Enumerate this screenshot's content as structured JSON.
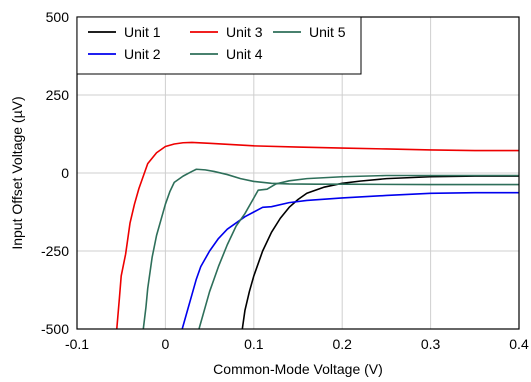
{
  "chart_data": {
    "type": "line",
    "title": "",
    "xlabel": "Common-Mode Voltage (V)",
    "ylabel": "Input Offset Voltage (µV)",
    "xlim": [
      -0.1,
      0.4
    ],
    "ylim": [
      -500,
      500
    ],
    "x_ticks": [
      -0.1,
      0,
      0.1,
      0.2,
      0.3,
      0.4
    ],
    "x_tick_labels": [
      "-0.1",
      "0",
      "0.1",
      "0.2",
      "0.3",
      "0.4"
    ],
    "y_ticks": [
      -500,
      -250,
      0,
      250,
      500
    ],
    "y_tick_labels": [
      "-500",
      "-250",
      "0",
      "250",
      "500"
    ],
    "grid": true,
    "legend_position": "top-left",
    "series": [
      {
        "name": "Unit 1",
        "color": "#000000",
        "points": [
          [
            0.087,
            -500
          ],
          [
            0.09,
            -440
          ],
          [
            0.095,
            -380
          ],
          [
            0.1,
            -330
          ],
          [
            0.11,
            -250
          ],
          [
            0.12,
            -190
          ],
          [
            0.13,
            -145
          ],
          [
            0.14,
            -110
          ],
          [
            0.15,
            -85
          ],
          [
            0.16,
            -65
          ],
          [
            0.18,
            -45
          ],
          [
            0.2,
            -33
          ],
          [
            0.22,
            -26
          ],
          [
            0.25,
            -18
          ],
          [
            0.3,
            -12
          ],
          [
            0.35,
            -10
          ],
          [
            0.4,
            -10
          ]
        ]
      },
      {
        "name": "Unit 2",
        "color": "#0000ee",
        "points": [
          [
            0.019,
            -500
          ],
          [
            0.025,
            -440
          ],
          [
            0.03,
            -390
          ],
          [
            0.035,
            -340
          ],
          [
            0.04,
            -300
          ],
          [
            0.05,
            -250
          ],
          [
            0.06,
            -210
          ],
          [
            0.07,
            -180
          ],
          [
            0.08,
            -160
          ],
          [
            0.09,
            -140
          ],
          [
            0.1,
            -125
          ],
          [
            0.11,
            -110
          ],
          [
            0.12,
            -108
          ],
          [
            0.14,
            -95
          ],
          [
            0.16,
            -88
          ],
          [
            0.2,
            -80
          ],
          [
            0.25,
            -72
          ],
          [
            0.3,
            -65
          ],
          [
            0.35,
            -63
          ],
          [
            0.4,
            -63
          ]
        ]
      },
      {
        "name": "Unit 3",
        "color": "#ee0000",
        "points": [
          [
            -0.055,
            -500
          ],
          [
            -0.052,
            -400
          ],
          [
            -0.05,
            -330
          ],
          [
            -0.045,
            -260
          ],
          [
            -0.04,
            -160
          ],
          [
            -0.035,
            -100
          ],
          [
            -0.03,
            -50
          ],
          [
            -0.02,
            30
          ],
          [
            -0.01,
            65
          ],
          [
            0,
            85
          ],
          [
            0.01,
            93
          ],
          [
            0.02,
            97
          ],
          [
            0.03,
            98
          ],
          [
            0.05,
            95
          ],
          [
            0.1,
            87
          ],
          [
            0.15,
            83
          ],
          [
            0.2,
            80
          ],
          [
            0.25,
            77
          ],
          [
            0.3,
            74
          ],
          [
            0.35,
            72
          ],
          [
            0.4,
            72
          ]
        ]
      },
      {
        "name": "Unit 4",
        "color": "#2e6f5a",
        "points": [
          [
            0.038,
            -500
          ],
          [
            0.045,
            -430
          ],
          [
            0.05,
            -380
          ],
          [
            0.055,
            -340
          ],
          [
            0.06,
            -300
          ],
          [
            0.07,
            -230
          ],
          [
            0.08,
            -170
          ],
          [
            0.09,
            -130
          ],
          [
            0.1,
            -80
          ],
          [
            0.105,
            -55
          ],
          [
            0.115,
            -52
          ],
          [
            0.125,
            -35
          ],
          [
            0.14,
            -25
          ],
          [
            0.16,
            -18
          ],
          [
            0.2,
            -12
          ],
          [
            0.25,
            -8
          ],
          [
            0.3,
            -8
          ],
          [
            0.35,
            -8
          ],
          [
            0.4,
            -8
          ]
        ]
      },
      {
        "name": "Unit 5",
        "color": "#2e6f5a",
        "points": [
          [
            -0.025,
            -500
          ],
          [
            -0.022,
            -430
          ],
          [
            -0.02,
            -370
          ],
          [
            -0.015,
            -270
          ],
          [
            -0.01,
            -200
          ],
          [
            -0.005,
            -150
          ],
          [
            0,
            -100
          ],
          [
            0.005,
            -60
          ],
          [
            0.01,
            -30
          ],
          [
            0.02,
            -10
          ],
          [
            0.03,
            5
          ],
          [
            0.035,
            12
          ],
          [
            0.045,
            10
          ],
          [
            0.055,
            5
          ],
          [
            0.07,
            -5
          ],
          [
            0.085,
            -18
          ],
          [
            0.1,
            -27
          ],
          [
            0.12,
            -33
          ],
          [
            0.14,
            -35
          ],
          [
            0.17,
            -36
          ],
          [
            0.2,
            -36
          ],
          [
            0.3,
            -37
          ],
          [
            0.4,
            -37
          ]
        ]
      }
    ]
  }
}
